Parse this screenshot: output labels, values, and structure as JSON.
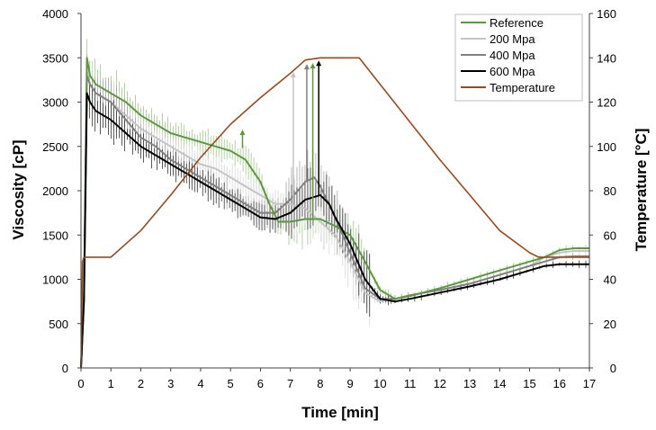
{
  "chart_data": {
    "type": "line",
    "xlabel": "Time [min]",
    "ylabel": "Viscosity [cP]",
    "y2label": "Temperature [°C]",
    "xlim": [
      0,
      17
    ],
    "ylim": [
      0,
      4000
    ],
    "y2lim": [
      0,
      160
    ],
    "xticks": [
      0,
      1,
      2,
      3,
      4,
      5,
      6,
      7,
      8,
      9,
      10,
      11,
      12,
      13,
      14,
      15,
      16,
      17
    ],
    "yticks": [
      0,
      500,
      1000,
      1500,
      2000,
      2500,
      3000,
      3500,
      4000
    ],
    "y2ticks": [
      0,
      20,
      40,
      60,
      80,
      100,
      120,
      140,
      160
    ],
    "legend_position": "top-right",
    "grid": false,
    "series": [
      {
        "name": "Reference",
        "color": "#5a9a3c",
        "axis": "left",
        "error_bars": true,
        "x": [
          0,
          0.1,
          0.2,
          0.3,
          0.5,
          1,
          1.5,
          2,
          2.5,
          3,
          3.5,
          4,
          4.5,
          5,
          5.5,
          6,
          6.3,
          6.6,
          7,
          7.5,
          8,
          8.5,
          9,
          9.5,
          10,
          10.5,
          11,
          12,
          13,
          14,
          15,
          15.5,
          16,
          16.5,
          17
        ],
        "values": [
          0,
          800,
          3500,
          3300,
          3200,
          3100,
          3000,
          2850,
          2750,
          2650,
          2600,
          2550,
          2500,
          2450,
          2350,
          2100,
          1850,
          1650,
          1650,
          1680,
          1680,
          1600,
          1500,
          1200,
          880,
          780,
          810,
          900,
          1000,
          1100,
          1200,
          1250,
          1330,
          1350,
          1350
        ]
      },
      {
        "name": "200 Mpa",
        "color": "#c4c4c4",
        "axis": "left",
        "error_bars": true,
        "x": [
          0,
          0.1,
          0.2,
          0.3,
          0.5,
          1,
          1.5,
          2,
          2.5,
          3,
          3.5,
          4,
          4.5,
          5,
          5.5,
          6,
          6.5,
          7,
          7.5,
          8,
          8.5,
          9,
          9.5,
          10,
          10.5,
          11,
          12,
          13,
          14,
          15,
          15.5,
          16,
          16.5,
          17
        ],
        "values": [
          0,
          800,
          3350,
          3200,
          3100,
          3000,
          2850,
          2700,
          2600,
          2500,
          2400,
          2300,
          2250,
          2150,
          2050,
          1950,
          1850,
          1850,
          1800,
          1650,
          1500,
          1200,
          850,
          750,
          780,
          820,
          880,
          950,
          1050,
          1150,
          1250,
          1300,
          1320,
          1320
        ]
      },
      {
        "name": "400 Mpa",
        "color": "#808080",
        "axis": "left",
        "error_bars": true,
        "x": [
          0,
          0.1,
          0.2,
          0.3,
          0.5,
          1,
          1.5,
          2,
          2.5,
          3,
          3.5,
          4,
          4.5,
          5,
          5.5,
          6,
          6.5,
          7,
          7.5,
          7.8,
          8,
          8.5,
          9,
          9.5,
          10,
          10.5,
          11,
          12,
          13,
          14,
          15,
          15.5,
          16,
          16.5,
          17
        ],
        "values": [
          0,
          800,
          3300,
          3200,
          3100,
          3000,
          2800,
          2600,
          2500,
          2350,
          2250,
          2150,
          2050,
          1950,
          1850,
          1750,
          1750,
          1900,
          2100,
          2150,
          2050,
          1700,
          1300,
          900,
          780,
          780,
          820,
          880,
          950,
          1050,
          1150,
          1200,
          1250,
          1260,
          1260
        ]
      },
      {
        "name": "600 Mpa",
        "color": "#000000",
        "axis": "left",
        "error_bars": true,
        "x": [
          0,
          0.1,
          0.2,
          0.3,
          0.5,
          1,
          1.5,
          2,
          2.5,
          3,
          3.5,
          4,
          4.5,
          5,
          5.5,
          6,
          6.5,
          7,
          7.5,
          8,
          8.3,
          8.5,
          9,
          9.5,
          10,
          10.5,
          11,
          12,
          13,
          14,
          15,
          15.5,
          16,
          16.5,
          17
        ],
        "values": [
          0,
          750,
          3100,
          3000,
          2900,
          2800,
          2650,
          2500,
          2400,
          2300,
          2200,
          2100,
          2000,
          1900,
          1800,
          1700,
          1680,
          1750,
          1900,
          1950,
          1850,
          1700,
          1400,
          1000,
          780,
          750,
          780,
          850,
          920,
          1000,
          1100,
          1150,
          1170,
          1170,
          1170
        ]
      },
      {
        "name": "Temperature",
        "color": "#9a4a1c",
        "axis": "right",
        "x": [
          0,
          0.05,
          0.1,
          1,
          2,
          3,
          4,
          5,
          6,
          7,
          7.5,
          8,
          8.5,
          9,
          9.3,
          10,
          11,
          12,
          13,
          14,
          15,
          15.3,
          16,
          17
        ],
        "values": [
          0,
          48,
          50,
          50,
          62,
          78,
          95,
          110,
          122,
          133,
          139,
          140,
          140,
          140,
          140,
          128,
          111,
          94,
          78,
          62,
          52,
          50,
          50,
          50
        ]
      }
    ],
    "annotations": [
      {
        "type": "arrow",
        "series": "Reference",
        "x": 5.4,
        "y_from": 2480,
        "y_to": 2680
      },
      {
        "type": "arrow",
        "series": "200 Mpa",
        "x": 7.1,
        "y_from": 1850,
        "y_to": 3330
      },
      {
        "type": "arrow",
        "series": "400 Mpa",
        "x": 7.55,
        "y_from": 2100,
        "y_to": 3420
      },
      {
        "type": "arrow",
        "series": "Reference",
        "x": 7.75,
        "y_from": 1680,
        "y_to": 3430
      },
      {
        "type": "arrow",
        "series": "600 Mpa",
        "x": 7.95,
        "y_from": 1950,
        "y_to": 3460
      }
    ]
  }
}
